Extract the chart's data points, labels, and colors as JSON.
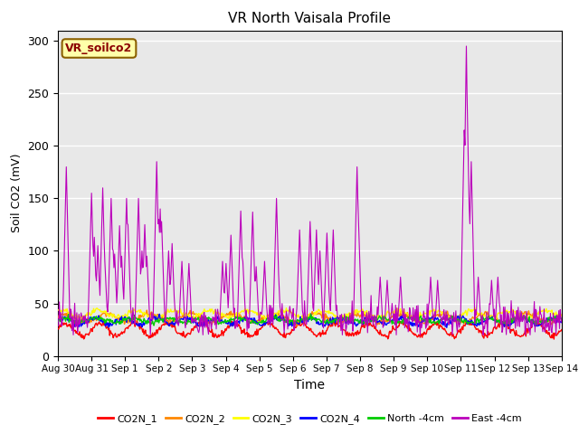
{
  "title": "VR North Vaisala Profile",
  "ylabel": "Soil CO2 (mV)",
  "xlabel": "Time",
  "annotation": "VR_soilco2",
  "ylim": [
    0,
    310
  ],
  "yticks": [
    0,
    50,
    100,
    150,
    200,
    250,
    300
  ],
  "legend_colors": {
    "CO2N_1": "#ff0000",
    "CO2N_2": "#ff8800",
    "CO2N_3": "#ffff00",
    "CO2N_4": "#0000ff",
    "North -4cm": "#00cc00",
    "East -4cm": "#bb00bb"
  },
  "background_color": "#e8e8e8",
  "figure_background": "#ffffff",
  "grid_color": "#ffffff",
  "xtick_labels": [
    "Aug 30",
    "Aug 31",
    "Sep 1",
    "Sep 2",
    "Sep 3",
    "Sep 4",
    "Sep 5",
    "Sep 6",
    "Sep 7",
    "Sep 8",
    "Sep 9",
    "Sep 10",
    "Sep 11",
    "Sep 12",
    "Sep 13",
    "Sep 14"
  ]
}
